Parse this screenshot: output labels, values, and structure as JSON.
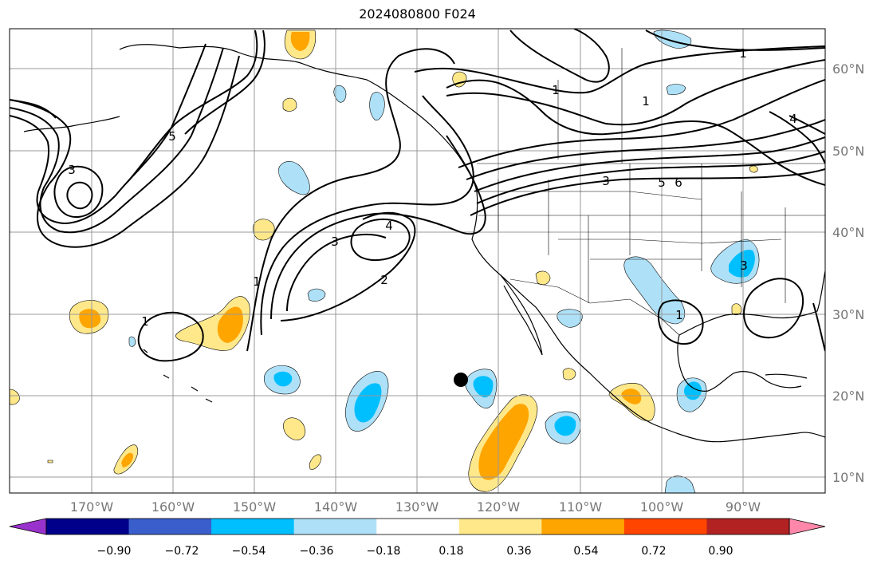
{
  "title": "2024080800 F024",
  "lat_labels": [
    "60°N",
    "50°N",
    "40°N",
    "30°N",
    "20°N",
    "10°N"
  ],
  "lon_labels": [
    "170°W",
    "160°W",
    "150°W",
    "140°W",
    "130°W",
    "120°W",
    "110°W",
    "100°W",
    "90°W"
  ],
  "contour_labels": [
    "1",
    "1",
    "1",
    "1",
    "1",
    "1",
    "2",
    "3",
    "3",
    "3",
    "3",
    "4",
    "4",
    "5",
    "5",
    "6"
  ],
  "colorbar": {
    "ticks": [
      "−0.90",
      "−0.72",
      "−0.54",
      "−0.36",
      "−0.18",
      "0.18",
      "0.36",
      "0.54",
      "0.72",
      "0.90"
    ],
    "colors": [
      "#9932cc",
      "#00008b",
      "#3a5fcd",
      "#00bfff",
      "#aee1f8",
      "#ffffff",
      "#ffe88a",
      "#ffa500",
      "#ff4500",
      "#b22222",
      "#ff88aa"
    ]
  },
  "marker": "black-dot"
}
